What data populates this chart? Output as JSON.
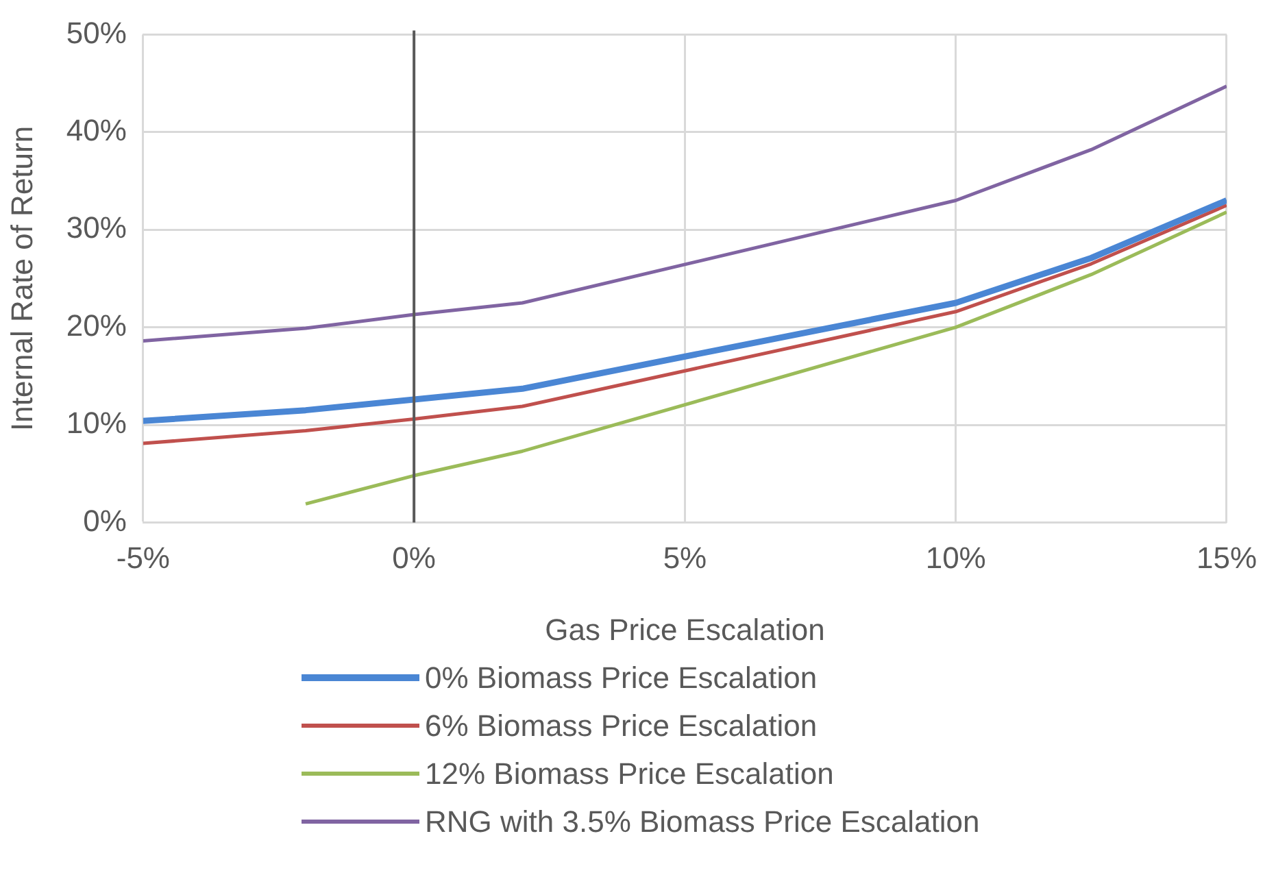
{
  "chart_data": {
    "type": "line",
    "xlabel": "Gas Price Escalation",
    "ylabel": "Internal Rate of Return",
    "x": [
      -5,
      -2,
      0,
      2,
      10,
      12.5,
      15
    ],
    "series": [
      {
        "name": "0% Biomass Price Escalation",
        "color": "#4a86d4",
        "values": [
          10.4,
          11.5,
          12.6,
          13.7,
          22.5,
          27.1,
          33.0
        ]
      },
      {
        "name": "6% Biomass Price Escalation",
        "color": "#c0504d",
        "values": [
          8.1,
          9.4,
          10.6,
          11.9,
          21.6,
          26.5,
          32.5
        ]
      },
      {
        "name": "12% Biomass Price Escalation",
        "color": "#9bbb59",
        "values": [
          null,
          1.9,
          4.8,
          7.3,
          20.0,
          25.4,
          31.8
        ]
      },
      {
        "name": "RNG with 3.5% Biomass Price Escalation",
        "color": "#8064a2",
        "values": [
          18.6,
          19.9,
          21.3,
          22.5,
          33.0,
          38.2,
          44.7
        ]
      }
    ],
    "xlim": [
      -5,
      15
    ],
    "xticks": [
      {
        "value": -5,
        "label": "-5%"
      },
      {
        "value": 0,
        "label": "0%"
      },
      {
        "value": 5,
        "label": "5%"
      },
      {
        "value": 10,
        "label": "10%"
      },
      {
        "value": 15,
        "label": "15%"
      }
    ],
    "ylim": [
      0,
      50
    ],
    "yticks": [
      {
        "value": 0,
        "label": "0%"
      },
      {
        "value": 10,
        "label": "10%"
      },
      {
        "value": 20,
        "label": "20%"
      },
      {
        "value": 30,
        "label": "30%"
      },
      {
        "value": 40,
        "label": "40%"
      },
      {
        "value": 50,
        "label": "50%"
      }
    ],
    "ref_lines": [
      {
        "axis": "x",
        "value": 0,
        "color": "#595959"
      }
    ],
    "grid": true,
    "legend": "bottom",
    "marker": "none",
    "line_style": "solid"
  }
}
